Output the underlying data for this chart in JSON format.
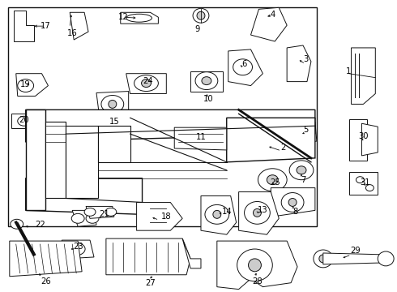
{
  "bg_color": "#ffffff",
  "border_color": "#000000",
  "fig_width": 4.9,
  "fig_height": 3.6,
  "dpi": 100,
  "lc": "#111111",
  "fc": "#ffffff",
  "lw": 0.7
}
